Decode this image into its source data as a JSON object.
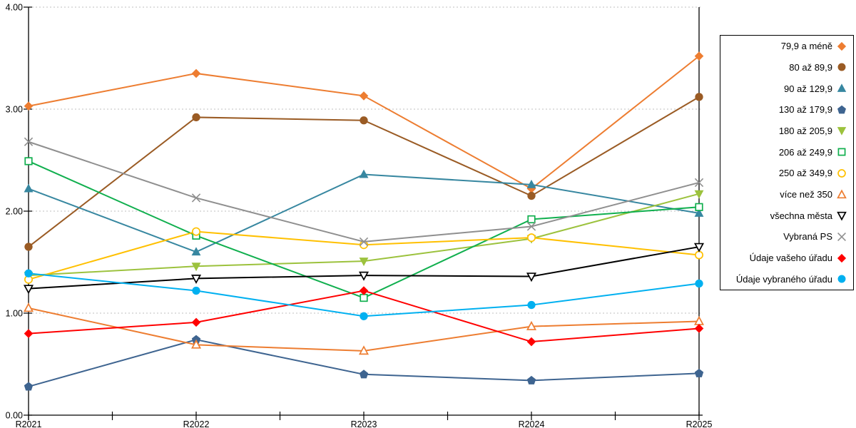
{
  "chart_data": {
    "type": "line",
    "title": "",
    "xlabel": "",
    "ylabel": "",
    "categories": [
      "R2021",
      "R2022",
      "R2023",
      "R2024",
      "R2025"
    ],
    "y_tick_labels": [
      "0.00",
      "1.00",
      "2.00",
      "3.00",
      "4.00"
    ],
    "ylim": [
      0,
      4
    ],
    "grid": "horizontal-dotted",
    "grid_color": "#BFBFBF",
    "axis_color": "#000000",
    "legend_position": "right-box",
    "series": [
      {
        "name": "79,9 a méně",
        "color": "#ED7D31",
        "marker": "diamond",
        "style": "filled",
        "values": [
          3.03,
          3.35,
          3.13,
          2.22,
          3.52
        ]
      },
      {
        "name": "80 až 89,9",
        "color": "#9A5B24",
        "marker": "circle",
        "style": "filled",
        "values": [
          1.65,
          2.92,
          2.89,
          2.15,
          3.12
        ]
      },
      {
        "name": "90 až 129,9",
        "color": "#3787A0",
        "marker": "triangle-up",
        "style": "filled",
        "values": [
          2.22,
          1.6,
          2.36,
          2.26,
          1.98
        ]
      },
      {
        "name": "130 až 179,9",
        "color": "#3E6490",
        "marker": "pentagon",
        "style": "filled",
        "values": [
          0.28,
          0.74,
          0.4,
          0.34,
          0.41
        ]
      },
      {
        "name": "180 až 205,9",
        "color": "#9CC23D",
        "marker": "triangle-down",
        "style": "filled",
        "values": [
          1.37,
          1.46,
          1.51,
          1.73,
          2.17
        ]
      },
      {
        "name": "206 až 249,9",
        "color": "#10AF4E",
        "marker": "square",
        "style": "open",
        "values": [
          2.49,
          1.76,
          1.15,
          1.92,
          2.04
        ]
      },
      {
        "name": "250 až 349,9",
        "color": "#FFC000",
        "marker": "circle",
        "style": "open",
        "values": [
          1.33,
          1.8,
          1.67,
          1.74,
          1.57
        ]
      },
      {
        "name": "více než 350",
        "color": "#ED7D31",
        "marker": "triangle-up",
        "style": "open",
        "values": [
          1.05,
          0.69,
          0.63,
          0.87,
          0.92
        ]
      },
      {
        "name": "všechna města",
        "color": "#000000",
        "marker": "triangle-down",
        "style": "open",
        "values": [
          1.24,
          1.34,
          1.37,
          1.36,
          1.65
        ]
      },
      {
        "name": "Vybraná PS",
        "color": "#8F8F8F",
        "marker": "x",
        "style": "line",
        "values": [
          2.68,
          2.13,
          1.7,
          1.85,
          2.28
        ]
      },
      {
        "name": "Údaje vašeho úřadu",
        "color": "#FF0000",
        "marker": "diamond",
        "style": "filled",
        "values": [
          0.8,
          0.91,
          1.22,
          0.72,
          0.85
        ]
      },
      {
        "name": "Údaje vybraného úřadu",
        "color": "#00B0F0",
        "marker": "circle",
        "style": "filled",
        "values": [
          1.39,
          1.22,
          0.97,
          1.08,
          1.29
        ]
      }
    ]
  }
}
